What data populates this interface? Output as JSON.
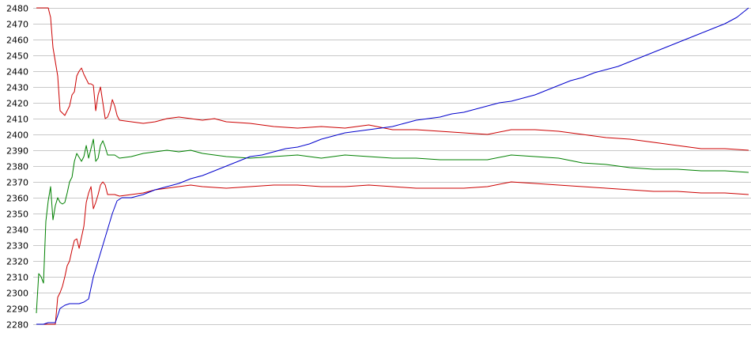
{
  "chart_data": {
    "type": "line",
    "title": "",
    "xlabel": "",
    "ylabel": "",
    "ylim": [
      2280,
      2480
    ],
    "yticks": [
      2280,
      2290,
      2300,
      2310,
      2320,
      2330,
      2340,
      2350,
      2360,
      2370,
      2380,
      2390,
      2400,
      2410,
      2420,
      2430,
      2440,
      2450,
      2460,
      2470,
      2480
    ],
    "ytick_labels": [
      "2280",
      "2290",
      "2300",
      "2310",
      "2320",
      "2330",
      "2340",
      "2350",
      "2360",
      "2370",
      "2380",
      "2390",
      "2400",
      "2410",
      "2420",
      "2430",
      "2440",
      "2450",
      "2460",
      "2470",
      "2480"
    ],
    "grid": "horizontal",
    "xlim": [
      0,
      300
    ],
    "series": [
      {
        "color": "#cc0000",
        "points": [
          [
            0,
            2480
          ],
          [
            3,
            2480
          ],
          [
            5,
            2480
          ],
          [
            6,
            2474
          ],
          [
            7,
            2455
          ],
          [
            9,
            2437
          ],
          [
            10,
            2415
          ],
          [
            12,
            2412
          ],
          [
            14,
            2418
          ],
          [
            15,
            2425
          ],
          [
            16,
            2427
          ],
          [
            17,
            2437
          ],
          [
            18,
            2440
          ],
          [
            19,
            2442
          ],
          [
            20,
            2438
          ],
          [
            21,
            2435
          ],
          [
            22,
            2432
          ],
          [
            23,
            2432
          ],
          [
            24,
            2431
          ],
          [
            25,
            2415
          ],
          [
            26,
            2425
          ],
          [
            27,
            2430
          ],
          [
            28,
            2420
          ],
          [
            29,
            2410
          ],
          [
            30,
            2411
          ],
          [
            31,
            2415
          ],
          [
            32,
            2422
          ],
          [
            33,
            2418
          ],
          [
            34,
            2412
          ],
          [
            35,
            2409
          ],
          [
            40,
            2408
          ],
          [
            45,
            2407
          ],
          [
            50,
            2408
          ],
          [
            55,
            2410
          ],
          [
            60,
            2411
          ],
          [
            65,
            2410
          ],
          [
            70,
            2409
          ],
          [
            75,
            2410
          ],
          [
            80,
            2408
          ],
          [
            90,
            2407
          ],
          [
            100,
            2405
          ],
          [
            110,
            2404
          ],
          [
            120,
            2405
          ],
          [
            130,
            2404
          ],
          [
            140,
            2406
          ],
          [
            150,
            2403
          ],
          [
            160,
            2403
          ],
          [
            170,
            2402
          ],
          [
            180,
            2401
          ],
          [
            190,
            2400
          ],
          [
            200,
            2403
          ],
          [
            210,
            2403
          ],
          [
            220,
            2402
          ],
          [
            230,
            2400
          ],
          [
            240,
            2398
          ],
          [
            250,
            2397
          ],
          [
            260,
            2395
          ],
          [
            270,
            2393
          ],
          [
            280,
            2391
          ],
          [
            290,
            2391
          ],
          [
            300,
            2390
          ]
        ]
      },
      {
        "color": "#008000",
        "points": [
          [
            0,
            2287
          ],
          [
            1,
            2312
          ],
          [
            2,
            2310
          ],
          [
            3,
            2306
          ],
          [
            4,
            2345
          ],
          [
            5,
            2358
          ],
          [
            6,
            2367
          ],
          [
            7,
            2346
          ],
          [
            8,
            2355
          ],
          [
            9,
            2360
          ],
          [
            10,
            2357
          ],
          [
            11,
            2356
          ],
          [
            12,
            2357
          ],
          [
            13,
            2363
          ],
          [
            14,
            2370
          ],
          [
            15,
            2373
          ],
          [
            16,
            2383
          ],
          [
            17,
            2388
          ],
          [
            19,
            2383
          ],
          [
            20,
            2386
          ],
          [
            21,
            2393
          ],
          [
            22,
            2385
          ],
          [
            24,
            2397
          ],
          [
            25,
            2383
          ],
          [
            26,
            2385
          ],
          [
            27,
            2393
          ],
          [
            28,
            2396
          ],
          [
            29,
            2392
          ],
          [
            30,
            2387
          ],
          [
            33,
            2387
          ],
          [
            35,
            2385
          ],
          [
            40,
            2386
          ],
          [
            45,
            2388
          ],
          [
            50,
            2389
          ],
          [
            55,
            2390
          ],
          [
            60,
            2389
          ],
          [
            65,
            2390
          ],
          [
            70,
            2388
          ],
          [
            75,
            2387
          ],
          [
            80,
            2386
          ],
          [
            90,
            2385
          ],
          [
            100,
            2386
          ],
          [
            110,
            2387
          ],
          [
            120,
            2385
          ],
          [
            130,
            2387
          ],
          [
            140,
            2386
          ],
          [
            150,
            2385
          ],
          [
            160,
            2385
          ],
          [
            170,
            2384
          ],
          [
            180,
            2384
          ],
          [
            190,
            2384
          ],
          [
            200,
            2387
          ],
          [
            210,
            2386
          ],
          [
            220,
            2385
          ],
          [
            230,
            2382
          ],
          [
            240,
            2381
          ],
          [
            250,
            2379
          ],
          [
            260,
            2378
          ],
          [
            270,
            2378
          ],
          [
            280,
            2377
          ],
          [
            290,
            2377
          ],
          [
            300,
            2376
          ]
        ]
      },
      {
        "color": "#cc0000",
        "points": [
          [
            0,
            2280
          ],
          [
            4,
            2280
          ],
          [
            5,
            2280
          ],
          [
            8,
            2280
          ],
          [
            9,
            2297
          ],
          [
            10,
            2300
          ],
          [
            11,
            2304
          ],
          [
            12,
            2310
          ],
          [
            13,
            2317
          ],
          [
            14,
            2320
          ],
          [
            15,
            2327
          ],
          [
            16,
            2333
          ],
          [
            17,
            2334
          ],
          [
            18,
            2328
          ],
          [
            19,
            2335
          ],
          [
            20,
            2342
          ],
          [
            21,
            2357
          ],
          [
            22,
            2363
          ],
          [
            23,
            2367
          ],
          [
            24,
            2353
          ],
          [
            25,
            2357
          ],
          [
            26,
            2362
          ],
          [
            27,
            2368
          ],
          [
            28,
            2370
          ],
          [
            29,
            2368
          ],
          [
            30,
            2362
          ],
          [
            33,
            2362
          ],
          [
            35,
            2361
          ],
          [
            40,
            2362
          ],
          [
            45,
            2363
          ],
          [
            50,
            2365
          ],
          [
            55,
            2366
          ],
          [
            60,
            2367
          ],
          [
            65,
            2368
          ],
          [
            70,
            2367
          ],
          [
            80,
            2366
          ],
          [
            90,
            2367
          ],
          [
            100,
            2368
          ],
          [
            110,
            2368
          ],
          [
            120,
            2367
          ],
          [
            130,
            2367
          ],
          [
            140,
            2368
          ],
          [
            150,
            2367
          ],
          [
            160,
            2366
          ],
          [
            170,
            2366
          ],
          [
            180,
            2366
          ],
          [
            190,
            2367
          ],
          [
            200,
            2370
          ],
          [
            210,
            2369
          ],
          [
            220,
            2368
          ],
          [
            230,
            2367
          ],
          [
            240,
            2366
          ],
          [
            250,
            2365
          ],
          [
            260,
            2364
          ],
          [
            270,
            2364
          ],
          [
            280,
            2363
          ],
          [
            290,
            2363
          ],
          [
            300,
            2362
          ]
        ]
      },
      {
        "color": "#0000cc",
        "points": [
          [
            0,
            2280
          ],
          [
            3,
            2280
          ],
          [
            5,
            2281
          ],
          [
            8,
            2281
          ],
          [
            10,
            2290
          ],
          [
            12,
            2292
          ],
          [
            14,
            2293
          ],
          [
            16,
            2293
          ],
          [
            18,
            2293
          ],
          [
            20,
            2294
          ],
          [
            22,
            2296
          ],
          [
            24,
            2310
          ],
          [
            26,
            2320
          ],
          [
            28,
            2330
          ],
          [
            30,
            2340
          ],
          [
            32,
            2350
          ],
          [
            34,
            2358
          ],
          [
            36,
            2360
          ],
          [
            40,
            2360
          ],
          [
            45,
            2362
          ],
          [
            50,
            2365
          ],
          [
            55,
            2367
          ],
          [
            60,
            2369
          ],
          [
            65,
            2372
          ],
          [
            70,
            2374
          ],
          [
            75,
            2377
          ],
          [
            80,
            2380
          ],
          [
            85,
            2383
          ],
          [
            90,
            2386
          ],
          [
            95,
            2387
          ],
          [
            100,
            2389
          ],
          [
            105,
            2391
          ],
          [
            110,
            2392
          ],
          [
            115,
            2394
          ],
          [
            120,
            2397
          ],
          [
            125,
            2399
          ],
          [
            130,
            2401
          ],
          [
            135,
            2402
          ],
          [
            140,
            2403
          ],
          [
            145,
            2404
          ],
          [
            150,
            2405
          ],
          [
            155,
            2407
          ],
          [
            160,
            2409
          ],
          [
            165,
            2410
          ],
          [
            170,
            2411
          ],
          [
            175,
            2413
          ],
          [
            180,
            2414
          ],
          [
            185,
            2416
          ],
          [
            190,
            2418
          ],
          [
            195,
            2420
          ],
          [
            200,
            2421
          ],
          [
            205,
            2423
          ],
          [
            210,
            2425
          ],
          [
            215,
            2428
          ],
          [
            220,
            2431
          ],
          [
            225,
            2434
          ],
          [
            230,
            2436
          ],
          [
            235,
            2439
          ],
          [
            240,
            2441
          ],
          [
            245,
            2443
          ],
          [
            250,
            2446
          ],
          [
            255,
            2449
          ],
          [
            260,
            2452
          ],
          [
            265,
            2455
          ],
          [
            270,
            2458
          ],
          [
            275,
            2461
          ],
          [
            280,
            2464
          ],
          [
            285,
            2467
          ],
          [
            290,
            2470
          ],
          [
            295,
            2474
          ],
          [
            300,
            2480
          ]
        ]
      }
    ]
  }
}
